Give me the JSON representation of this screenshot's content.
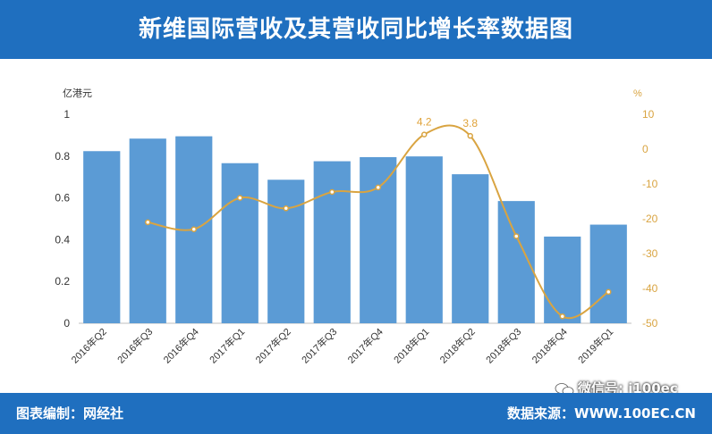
{
  "header": {
    "title": "新维国际营收及其营收同比增长率数据图"
  },
  "footer": {
    "left_text": "图表编制：网经社",
    "right_text": "数据来源：WWW.100EC.CN"
  },
  "watermark": {
    "text": "微信号: i100ec"
  },
  "colors": {
    "header_bg": "#1f6fbf",
    "bar": "#5b9bd5",
    "line": "#d9a441"
  },
  "chart_data": {
    "type": "bar",
    "categories": [
      "2016年Q2",
      "2016年Q3",
      "2016年Q4",
      "2017年Q1",
      "2017年Q2",
      "2017年Q3",
      "2017年Q4",
      "2018年Q1",
      "2018年Q2",
      "2018年Q3",
      "2018年Q4",
      "2019年Q1"
    ],
    "left_axis": {
      "unit": "亿港元",
      "ylim": [
        0,
        1
      ],
      "ticks": [
        "0",
        "0.2",
        "0.4",
        "0.6",
        "0.8",
        "1"
      ]
    },
    "right_axis": {
      "unit": "%",
      "ylim": [
        -50,
        10
      ],
      "ticks": [
        "-50",
        "-40",
        "-30",
        "-20",
        "-10",
        "0",
        "10"
      ]
    },
    "series": [
      {
        "type": "bar",
        "axis": "left",
        "values": [
          0.8237,
          0.8837,
          0.8948,
          0.7661,
          0.6868,
          0.7754,
          0.7951,
          0.7985,
          0.7132,
          0.5849,
          0.4149,
          0.472
        ],
        "labels": [
          "0.8237",
          "0.8837",
          "0.8948",
          "0.7661",
          "0.6868",
          "0.7754",
          "0.7951",
          "0.7985",
          "0.7132",
          "0.5849",
          "0.4149",
          "0.472"
        ]
      },
      {
        "type": "line",
        "axis": "right",
        "values": [
          null,
          -21,
          -23,
          -14,
          -17,
          -12.3,
          -11,
          4.2,
          3.8,
          -25,
          -48,
          -41
        ],
        "labels": [
          "",
          "",
          "",
          "",
          "",
          "",
          "",
          "4.2",
          "3.8",
          "",
          "",
          ""
        ]
      }
    ]
  }
}
